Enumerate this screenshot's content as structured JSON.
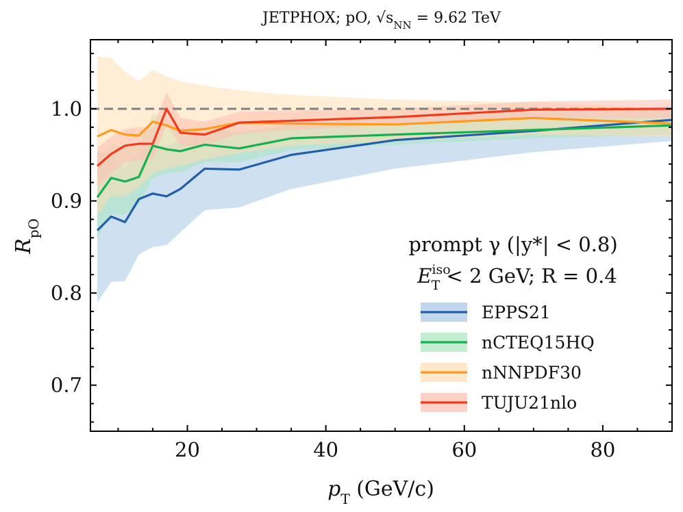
{
  "chart_data": {
    "type": "line",
    "title": "JETPHOX; pO, √s",
    "title_sub": "NN",
    "title_suffix": " = 9.62 TeV",
    "xlabel": "p",
    "xlabel_sub": "T",
    "xlabel_unit": " (GeV/c)",
    "ylabel": "R",
    "ylabel_sub": "pO",
    "xlim": [
      6,
      90
    ],
    "ylim": [
      0.65,
      1.075
    ],
    "xticks": [
      20,
      40,
      60,
      80
    ],
    "xtick_labels": [
      "20",
      "40",
      "60",
      "80"
    ],
    "yticks": [
      0.7,
      0.8,
      0.9,
      1.0
    ],
    "ytick_labels": [
      "0.7",
      "0.8",
      "0.9",
      "1.0"
    ],
    "reference_line": 1.0,
    "annotation_line1": "prompt γ (|y*| < 0.8)",
    "annotation_line2_a": "E",
    "annotation_line2_sup": "iso",
    "annotation_line2_sub": "T",
    "annotation_line2_b": " < 2 GeV; R = 0.4",
    "x": [
      7,
      9,
      11,
      13,
      15,
      17,
      19,
      22.5,
      27.5,
      35,
      50,
      70,
      90
    ],
    "series": [
      {
        "name": "EPPS21",
        "color": "#1f5ea8",
        "band_color": "#a7c6e3",
        "values": [
          0.868,
          0.883,
          0.877,
          0.902,
          0.908,
          0.905,
          0.913,
          0.935,
          0.934,
          0.95,
          0.966,
          0.976,
          0.988
        ],
        "lower": [
          0.79,
          0.812,
          0.813,
          0.842,
          0.85,
          0.852,
          0.866,
          0.89,
          0.893,
          0.913,
          0.935,
          0.953,
          0.965
        ],
        "upper": [
          0.955,
          0.95,
          0.935,
          0.955,
          0.96,
          0.96,
          0.965,
          0.978,
          0.975,
          0.983,
          0.99,
          0.996,
          1.003
        ]
      },
      {
        "name": "nCTEQ15HQ",
        "color": "#16b04e",
        "band_color": "#a8e6bd",
        "values": [
          0.904,
          0.925,
          0.921,
          0.926,
          0.96,
          0.956,
          0.954,
          0.961,
          0.957,
          0.968,
          0.972,
          0.977,
          0.982
        ],
        "lower": [
          0.86,
          0.886,
          0.885,
          0.895,
          0.925,
          0.93,
          0.931,
          0.942,
          0.942,
          0.955,
          0.961,
          0.968,
          0.972
        ],
        "upper": [
          0.945,
          0.962,
          0.958,
          0.958,
          0.995,
          0.988,
          0.978,
          0.981,
          0.974,
          0.982,
          0.984,
          0.988,
          0.993
        ]
      },
      {
        "name": "nNNPDF30",
        "color": "#ff9a1c",
        "band_color": "#ffdfb3",
        "values": [
          0.97,
          0.977,
          0.972,
          0.971,
          0.986,
          0.982,
          0.976,
          0.978,
          0.985,
          0.984,
          0.983,
          0.99,
          0.984
        ],
        "lower": [
          0.885,
          0.905,
          0.905,
          0.915,
          0.93,
          0.935,
          0.938,
          0.945,
          0.952,
          0.96,
          0.965,
          0.972,
          0.97
        ],
        "upper": [
          1.057,
          1.055,
          1.04,
          1.03,
          1.042,
          1.035,
          1.03,
          1.025,
          1.02,
          1.015,
          1.01,
          1.007,
          1.0
        ]
      },
      {
        "name": "TUJU21nlo",
        "color": "#f5381a",
        "band_color": "#fdbfae",
        "values": [
          0.938,
          0.951,
          0.96,
          0.962,
          0.962,
          1.0,
          0.974,
          0.972,
          0.985,
          0.987,
          0.991,
          0.999,
          1.0
        ],
        "lower": [
          0.915,
          0.93,
          0.942,
          0.945,
          0.945,
          0.983,
          0.96,
          0.96,
          0.973,
          0.977,
          0.983,
          0.99,
          0.99
        ],
        "upper": [
          0.958,
          0.97,
          0.978,
          0.98,
          0.98,
          1.018,
          0.99,
          0.986,
          0.997,
          0.998,
          1.0,
          1.008,
          1.01
        ]
      }
    ]
  }
}
